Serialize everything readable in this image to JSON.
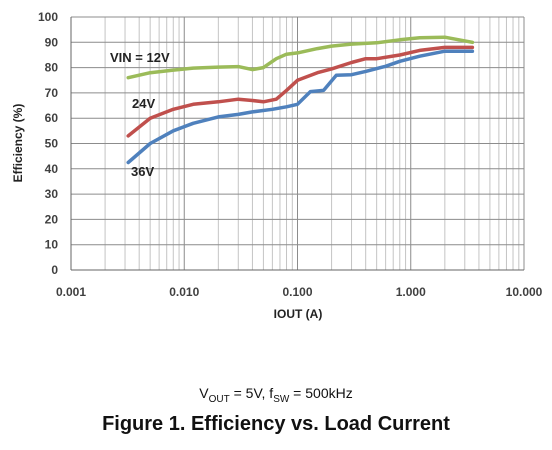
{
  "chart_data": {
    "type": "line",
    "xlabel": "IOUT (A)",
    "ylabel": "Efficiency (%)",
    "x_scale": "log",
    "xlim": [
      0.001,
      10
    ],
    "ylim": [
      0,
      100
    ],
    "x_ticks": [
      0.001,
      0.01,
      0.1,
      1,
      10
    ],
    "x_tick_labels": [
      "0.001",
      "0.010",
      "0.100",
      "1.000",
      "10.000"
    ],
    "y_ticks": [
      0,
      10,
      20,
      30,
      40,
      50,
      60,
      70,
      80,
      90,
      100
    ],
    "y_tick_labels": [
      "0",
      "10",
      "20",
      "30",
      "40",
      "50",
      "60",
      "70",
      "80",
      "90",
      "100"
    ],
    "grid": true,
    "series": [
      {
        "name": "VIN = 12V",
        "color": "#9bbb59",
        "x": [
          0.0032,
          0.005,
          0.008,
          0.012,
          0.02,
          0.03,
          0.04,
          0.05,
          0.065,
          0.08,
          0.1,
          0.15,
          0.2,
          0.3,
          0.5,
          0.8,
          1.2,
          2,
          3.5
        ],
        "y": [
          76,
          78,
          79,
          79.8,
          80.2,
          80.4,
          79.2,
          80,
          83.5,
          85.3,
          85.8,
          87.5,
          88.5,
          89.3,
          89.8,
          91,
          91.8,
          92,
          90
        ]
      },
      {
        "name": "24V",
        "color": "#c0504d",
        "x": [
          0.0032,
          0.005,
          0.008,
          0.012,
          0.02,
          0.03,
          0.04,
          0.05,
          0.065,
          0.08,
          0.1,
          0.15,
          0.2,
          0.3,
          0.4,
          0.5,
          0.8,
          1.2,
          2,
          3.5
        ],
        "y": [
          53,
          60,
          63.5,
          65.5,
          66.5,
          67.5,
          67,
          66.5,
          67.5,
          71,
          75,
          78,
          79.5,
          82,
          83.5,
          83.5,
          85,
          86.8,
          88,
          88
        ]
      },
      {
        "name": "36V",
        "color": "#4f81bd",
        "x": [
          0.0032,
          0.005,
          0.008,
          0.012,
          0.02,
          0.03,
          0.04,
          0.06,
          0.08,
          0.1,
          0.13,
          0.17,
          0.22,
          0.3,
          0.4,
          0.6,
          0.8,
          1.2,
          2,
          3.5
        ],
        "y": [
          42.5,
          50,
          55,
          58,
          60.5,
          61.5,
          62.5,
          63.5,
          64.5,
          65.5,
          70.5,
          71,
          77,
          77.2,
          78.5,
          80.5,
          82.5,
          84.5,
          86.5,
          86.5
        ]
      }
    ]
  },
  "subcaption": {
    "v_main": "V",
    "v_sub": "OUT",
    "v_rest": " = 5V, f",
    "f_sub": "SW",
    "f_rest": " = 500kHz"
  },
  "figure_title": "Figure 1. Efficiency vs. Load Current"
}
